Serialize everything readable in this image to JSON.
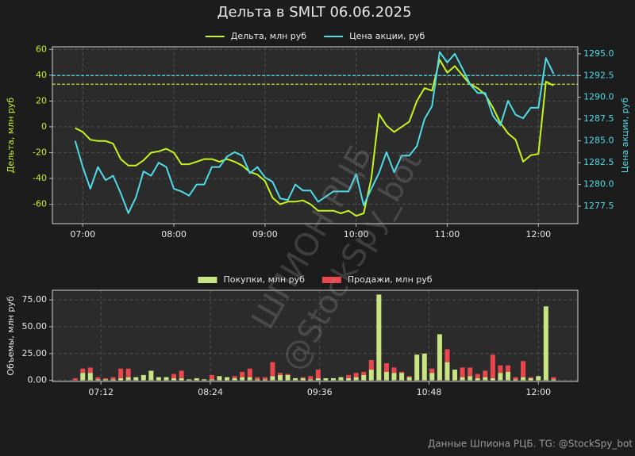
{
  "title": "Дельта в SMLT 06.06.2025",
  "footer": "Данные Шпиона РЦБ. TG: @StockSpy_bot",
  "watermark": [
    "ШПИОН РЦБ",
    "@StockSpy_bot"
  ],
  "chart_data": [
    {
      "type": "line",
      "ylabel": "Дельта, млн руб",
      "y2label": "Цена акции, руб",
      "x": [
        415,
        420,
        425,
        430,
        435,
        440,
        445,
        450,
        455,
        460,
        465,
        470,
        475,
        480,
        485,
        490,
        495,
        500,
        505,
        510,
        515,
        520,
        525,
        530,
        535,
        540,
        545,
        550,
        555,
        560,
        565,
        570,
        575,
        580,
        585,
        590,
        595,
        600,
        605,
        610,
        615,
        620,
        625,
        630,
        635,
        640,
        645,
        650,
        655,
        660,
        665,
        670,
        675,
        680,
        685,
        690,
        695,
        700,
        705,
        710,
        715,
        720,
        725,
        730
      ],
      "xlim": [
        400,
        746
      ],
      "xticks": [
        {
          "value": 420,
          "label": "07:00"
        },
        {
          "value": 480,
          "label": "08:00"
        },
        {
          "value": 540,
          "label": "09:00"
        },
        {
          "value": 600,
          "label": "10:00"
        },
        {
          "value": 660,
          "label": "11:00"
        },
        {
          "value": 720,
          "label": "12:00"
        }
      ],
      "ylim": [
        -75,
        62
      ],
      "yticks": [
        -60,
        -40,
        -20,
        0,
        20,
        40,
        60
      ],
      "y2lim": [
        1275.5,
        1295.8
      ],
      "y2ticks": [
        1277.5,
        {
          "value": 1280,
          "label": "1280.0"
        },
        1282.5,
        {
          "value": 1285,
          "label": "1285.0"
        },
        1287.5,
        {
          "value": 1290,
          "label": "1290.0"
        },
        1292.5,
        {
          "value": 1295,
          "label": "1295.0"
        }
      ],
      "grid": true,
      "legend": "upper center",
      "series": [
        {
          "name": "Дельта, млн руб",
          "color": "#c6f51d",
          "axis": "y",
          "values": [
            -1,
            -4,
            -10,
            -11,
            -11,
            -13,
            -25,
            -30,
            -30,
            -26,
            -20,
            -19,
            -17,
            -20,
            -29,
            -29,
            -27,
            -25,
            -25,
            -27,
            -25,
            -27,
            -30,
            -35,
            -37,
            -42,
            -55,
            -60,
            -58,
            -58,
            -57,
            -60,
            -65,
            -65,
            -65,
            -67,
            -65,
            -69,
            -67,
            -40,
            10,
            1,
            -4,
            0,
            4,
            20,
            30,
            28,
            52,
            42,
            47,
            40,
            33,
            30,
            25,
            15,
            3,
            -5,
            -10,
            -27,
            -22,
            -21,
            35,
            32
          ]
        },
        {
          "name": "Цена акции, руб",
          "color": "#4fdbe8",
          "axis": "y2",
          "values": [
            1285,
            1282,
            1279.5,
            1282,
            1280.5,
            1281,
            1279,
            1276.7,
            1278.5,
            1281.5,
            1281,
            1282.5,
            1282,
            1279.5,
            1279.2,
            1278.7,
            1280,
            1280,
            1282,
            1282,
            1283.2,
            1283.7,
            1283.3,
            1281.3,
            1282,
            1280.8,
            1280.3,
            1278.4,
            1278.2,
            1280,
            1279.3,
            1279.3,
            1278,
            1278.6,
            1279.2,
            1279.2,
            1279.2,
            1281.2,
            1277.6,
            1279.5,
            1281.3,
            1283.7,
            1281.4,
            1283.3,
            1283.3,
            1284.4,
            1287.5,
            1289,
            1295.2,
            1294,
            1295,
            1293.3,
            1291.5,
            1290.5,
            1290.5,
            1287.9,
            1286.8,
            1289.6,
            1288,
            1287.6,
            1288.8,
            1288.8,
            1294.5,
            1292.7
          ]
        }
      ],
      "reference_lines": [
        {
          "axis": "y",
          "value": 33,
          "color": "#c6f51d"
        },
        {
          "axis": "y2",
          "value": 1292.5,
          "color": "#4fdbe8"
        }
      ]
    },
    {
      "type": "bar",
      "stacked": true,
      "ylabel": "Объемы, млн руб",
      "x": [
        415,
        420,
        425,
        430,
        435,
        440,
        445,
        450,
        455,
        460,
        465,
        470,
        475,
        480,
        485,
        490,
        495,
        500,
        505,
        510,
        515,
        520,
        525,
        530,
        535,
        540,
        545,
        550,
        555,
        560,
        565,
        570,
        575,
        580,
        585,
        590,
        595,
        600,
        605,
        610,
        615,
        620,
        625,
        630,
        635,
        640,
        645,
        650,
        655,
        660,
        665,
        670,
        675,
        680,
        685,
        690,
        695,
        700,
        705,
        710,
        715,
        720,
        725,
        730
      ],
      "xlim": [
        400,
        746
      ],
      "xticks": [
        {
          "value": 432,
          "label": "07:12"
        },
        {
          "value": 504,
          "label": "08:24"
        },
        {
          "value": 576,
          "label": "09:36"
        },
        {
          "value": 648,
          "label": "10:48"
        },
        {
          "value": 720,
          "label": "12:00"
        }
      ],
      "ylim": [
        -1,
        84
      ],
      "yticks": [
        {
          "value": 0,
          "label": "0.00"
        },
        {
          "value": 25,
          "label": "25.00"
        },
        {
          "value": 50,
          "label": "50.00"
        },
        {
          "value": 75,
          "label": "75.00"
        }
      ],
      "grid": true,
      "legend": "upper center",
      "series": [
        {
          "name": "Покупки, млн руб",
          "color": "#c9e583",
          "values": [
            0,
            7,
            7,
            1,
            1,
            1,
            2,
            3,
            3,
            5,
            9,
            3,
            3,
            2,
            2,
            1,
            2,
            1,
            1,
            4,
            3,
            2,
            3,
            3,
            1,
            1,
            4,
            5,
            5,
            2,
            2,
            1,
            2,
            2,
            2,
            3,
            2,
            3,
            5,
            10,
            80,
            8,
            7,
            7,
            3,
            24,
            25,
            7,
            43,
            17,
            10,
            3,
            4,
            2,
            3,
            2,
            7,
            8,
            1,
            3,
            2,
            4,
            69,
            1
          ]
        },
        {
          "name": "Продажи, млн руб",
          "color": "#e8484d",
          "values": [
            2,
            4,
            5,
            2,
            1,
            2,
            9,
            8,
            0,
            0,
            0,
            0,
            0,
            4,
            7,
            0,
            0,
            0,
            4,
            0,
            0,
            2,
            5,
            8,
            2,
            2,
            13,
            2,
            1,
            0,
            1,
            3,
            8,
            0,
            0,
            0,
            3,
            4,
            3,
            9,
            0,
            8,
            5,
            1,
            1,
            0,
            0,
            4,
            0,
            12,
            0,
            9,
            8,
            4,
            6,
            22,
            7,
            6,
            2,
            15,
            1,
            0,
            0,
            2
          ]
        }
      ]
    }
  ]
}
